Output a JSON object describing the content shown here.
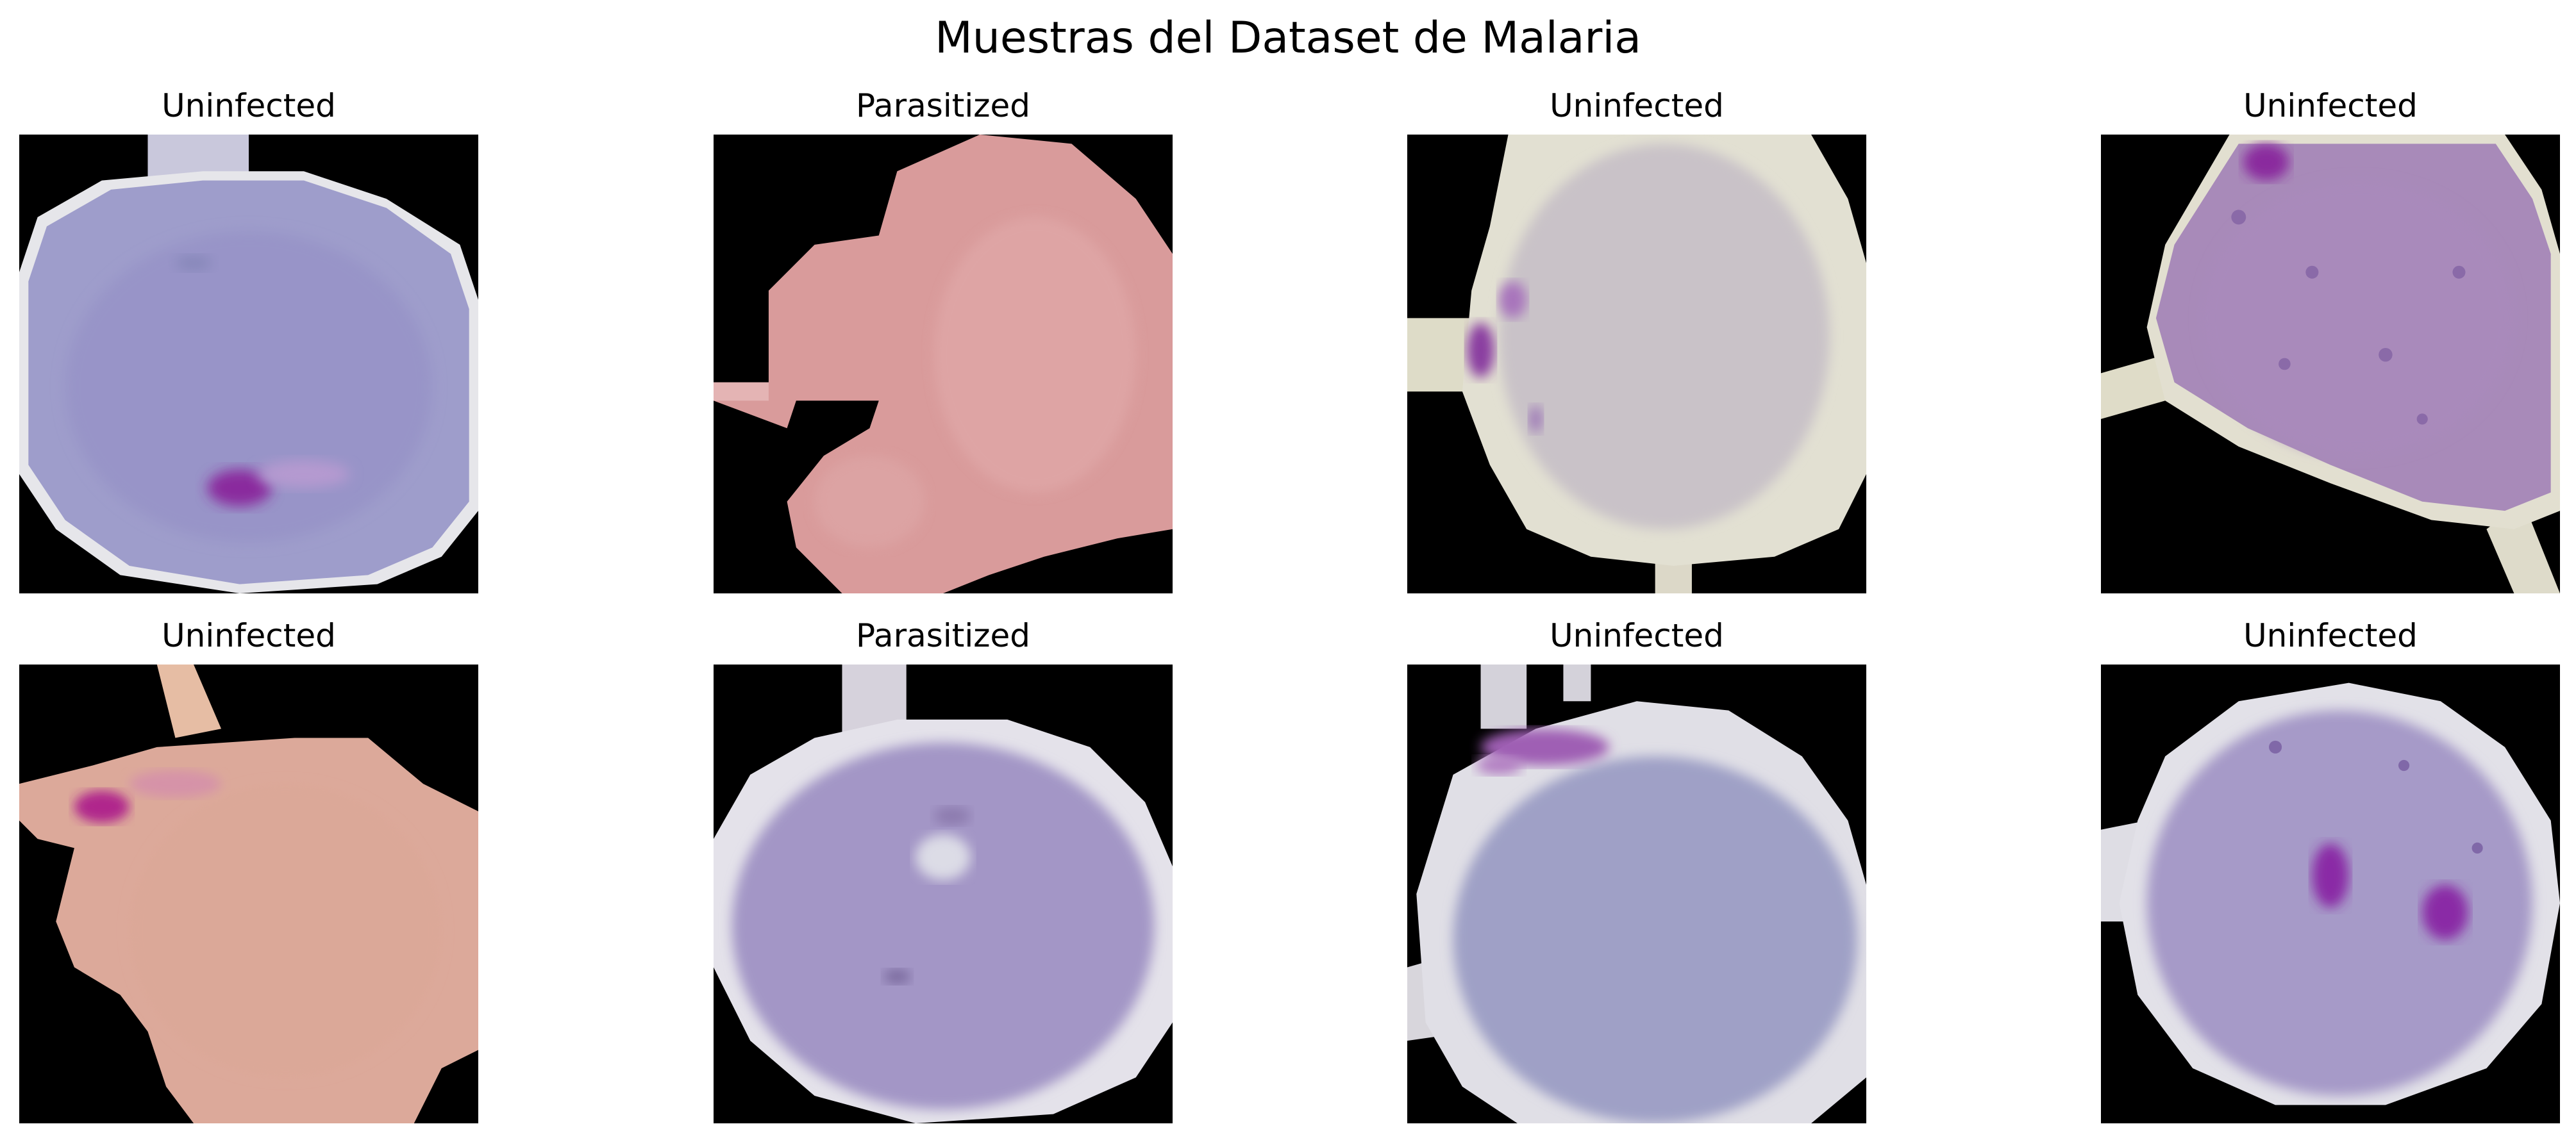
{
  "figure": {
    "title": "Muestras del Dataset de Malaria"
  },
  "samples": [
    {
      "label": "Uninfected"
    },
    {
      "label": "Parasitized"
    },
    {
      "label": "Uninfected"
    },
    {
      "label": "Uninfected"
    },
    {
      "label": "Uninfected"
    },
    {
      "label": "Parasitized"
    },
    {
      "label": "Uninfected"
    },
    {
      "label": "Uninfected"
    }
  ],
  "colors": {
    "background_pad": "#000000",
    "stain_blue": "#9a98c8",
    "stain_pink": "#d99a9a",
    "stain_grey": "#cdc6cc",
    "stain_lilac": "#a78ab8",
    "stain_peach": "#dba99a",
    "parasite": "#9a2aa8"
  }
}
